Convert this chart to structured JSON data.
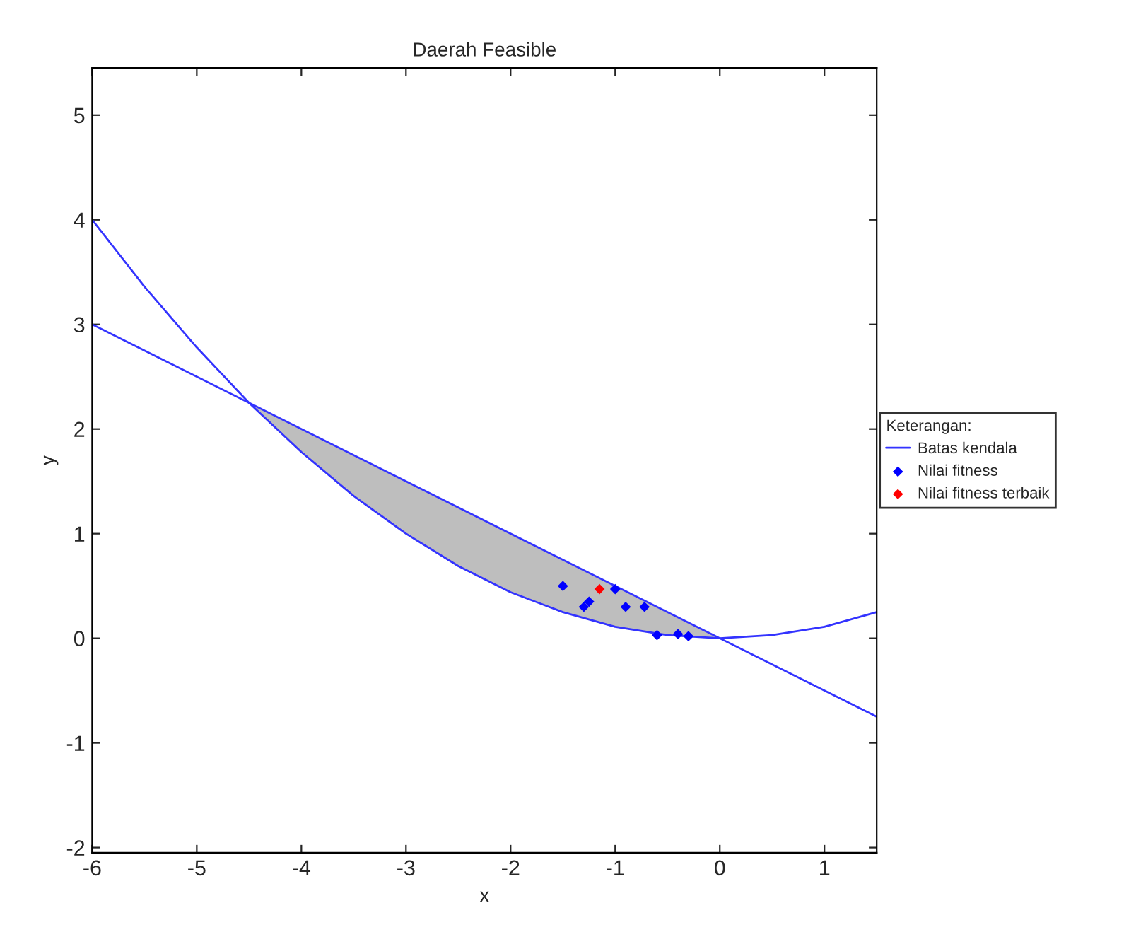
{
  "chart_data": {
    "type": "line",
    "title": "Daerah Feasible",
    "xlabel": "x",
    "ylabel": "y",
    "legend_title": "Keterangan:",
    "xlim": [
      -6,
      1.5
    ],
    "xticks": [
      -6,
      -5,
      -4,
      -3,
      -2,
      -1,
      0,
      1
    ],
    "ylim": [
      -2.05,
      5.45
    ],
    "yticks": [
      -2,
      -1,
      0,
      1,
      2,
      3,
      4,
      5
    ],
    "grid": false,
    "legend": "right",
    "series": [
      {
        "name": "Batas kendala",
        "color": "#3333ff",
        "marker": "none",
        "x": [
          -6,
          1.5
        ],
        "values": [
          3,
          -0.75
        ]
      },
      {
        "color": "#3333ff",
        "marker": "none",
        "x": [
          -6,
          -5.5,
          -5,
          -4.5,
          -4,
          -3.5,
          -3,
          -2.5,
          -2,
          -1.5,
          -1,
          -0.5,
          0,
          0.5,
          1,
          1.5
        ],
        "values": [
          4,
          3.36,
          2.78,
          2.25,
          1.78,
          1.36,
          1,
          0.69,
          0.44,
          0.25,
          0.11,
          0.03,
          0,
          0.03,
          0.11,
          0.25
        ],
        "lower": [
          null,
          null,
          null,
          2.25,
          1.78,
          1.36,
          1,
          0.69,
          0.44,
          0.25,
          0.11,
          0.03,
          0,
          null,
          null,
          null
        ],
        "upper": [
          null,
          null,
          null,
          2.25,
          2,
          1.75,
          1.5,
          1.25,
          1,
          0.75,
          0.5,
          0.25,
          0,
          null,
          null,
          null
        ]
      },
      {
        "type": "scatter",
        "name": "Nilai fitness",
        "color": "#0000ff",
        "marker": "diamond",
        "x": [
          -1.5,
          -1.3,
          -1.25,
          -1.0,
          -0.9,
          -0.72,
          -0.6,
          -0.4,
          -0.3
        ],
        "values": [
          0.5,
          0.3,
          0.35,
          0.47,
          0.3,
          0.3,
          0.03,
          0.04,
          0.02
        ]
      },
      {
        "type": "scatter",
        "name": "Nilai fitness terbaik",
        "color": "#ff0000",
        "marker": "diamond",
        "x": [
          -1.15
        ],
        "values": [
          0.47
        ]
      }
    ]
  }
}
